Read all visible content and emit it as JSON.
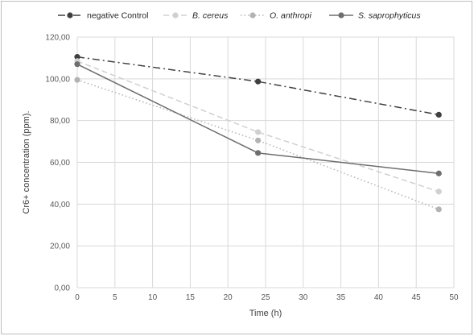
{
  "chart_data": {
    "type": "line",
    "title": "",
    "xlabel": "Time (h)",
    "ylabel": "Cr6+ concentration (ppm).",
    "xlim": [
      0,
      50
    ],
    "ylim": [
      0,
      120
    ],
    "xticks": [
      0,
      5,
      10,
      15,
      20,
      25,
      30,
      35,
      40,
      45,
      50
    ],
    "yticks": [
      0,
      20,
      40,
      60,
      80,
      100,
      120
    ],
    "ytick_labels": [
      "0,00",
      "20,00",
      "40,00",
      "60,00",
      "80,00",
      "100,00",
      "120,00"
    ],
    "grid": true,
    "legend_position": "top",
    "series": [
      {
        "name": "negative Control",
        "x": [
          0,
          24,
          48
        ],
        "y": [
          110.5,
          98.7,
          82.8
        ],
        "color": "#3f3f3f",
        "dash": "dashdot",
        "italic": false
      },
      {
        "name": "B. cereus",
        "x": [
          0,
          24,
          48
        ],
        "y": [
          108.5,
          74.5,
          46.0
        ],
        "color": "#d0d0d0",
        "dash": "dash",
        "italic": true
      },
      {
        "name": "O. anthropi",
        "x": [
          0,
          24,
          48
        ],
        "y": [
          99.5,
          70.5,
          37.5
        ],
        "color": "#b3b3b3",
        "dash": "dot",
        "italic": true
      },
      {
        "name": "S. saprophyticus",
        "x": [
          0,
          24,
          48
        ],
        "y": [
          107.0,
          64.5,
          54.7
        ],
        "color": "#6e6e6e",
        "dash": "solid",
        "italic": true
      }
    ]
  }
}
